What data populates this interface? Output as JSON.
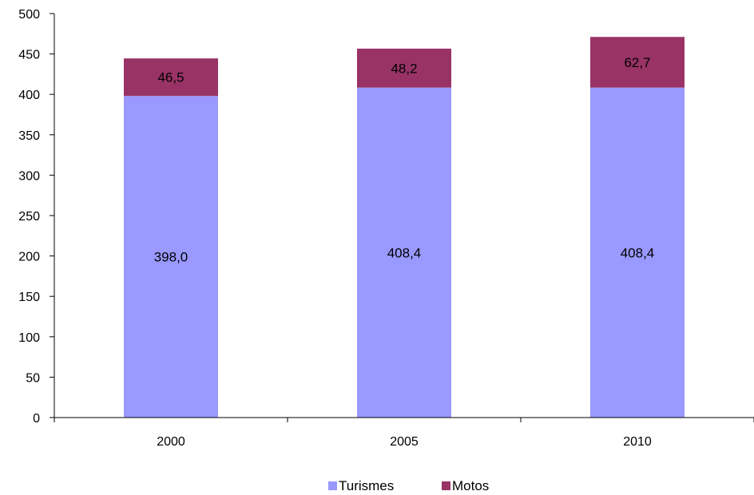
{
  "chart_data": {
    "type": "bar",
    "stacked": true,
    "title": "",
    "xlabel": "",
    "ylabel": "",
    "categories": [
      "2000",
      "2005",
      "2010"
    ],
    "ylim": [
      0,
      500
    ],
    "yticks": [
      0,
      50,
      100,
      150,
      200,
      250,
      300,
      350,
      400,
      450,
      500
    ],
    "grid": false,
    "legend_position": "bottom",
    "series": [
      {
        "name": "Turismes",
        "color": "#9999ff",
        "values": [
          398.0,
          408.4,
          408.4
        ],
        "labels": [
          "398,0",
          "408,4",
          "408,4"
        ]
      },
      {
        "name": "Motos",
        "color": "#993366",
        "values": [
          46.5,
          48.2,
          62.7
        ],
        "labels": [
          "46,5",
          "48,2",
          "62,7"
        ]
      }
    ]
  }
}
